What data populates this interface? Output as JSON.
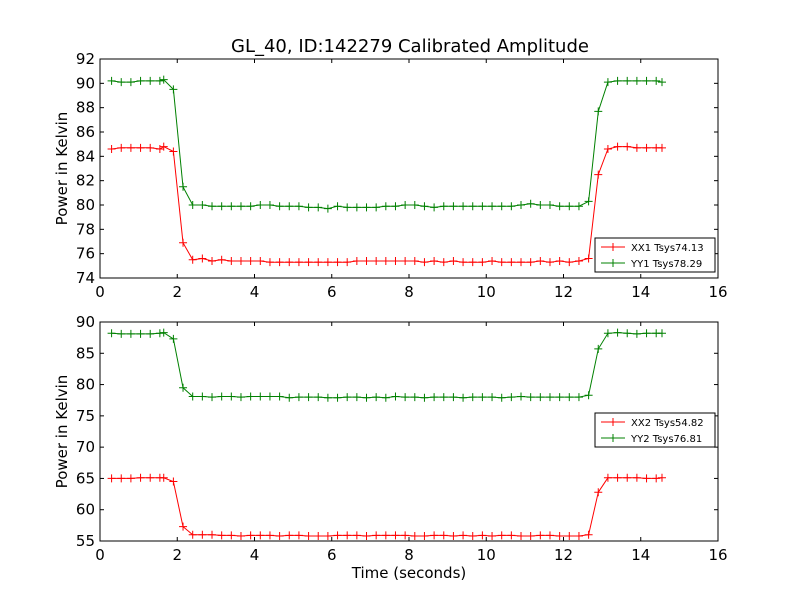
{
  "chart_data": {
    "title": "GL_40, ID:142279 Calibrated Amplitude",
    "panels": [
      {
        "type": "line",
        "xlabel": "",
        "ylabel": "Power in Kelvin",
        "xlim": [
          0,
          16
        ],
        "ylim": [
          74,
          92
        ],
        "xticks": [
          0,
          2,
          4,
          6,
          8,
          10,
          12,
          14,
          16
        ],
        "yticks": [
          74,
          76,
          78,
          80,
          82,
          84,
          86,
          88,
          90,
          92
        ],
        "legend_position": "lower-right",
        "x": [
          0.3,
          0.55,
          0.8,
          1.05,
          1.3,
          1.55,
          1.65,
          1.9,
          2.15,
          2.4,
          2.65,
          2.9,
          3.15,
          3.4,
          3.65,
          3.9,
          4.15,
          4.4,
          4.65,
          4.9,
          5.15,
          5.4,
          5.65,
          5.9,
          6.15,
          6.4,
          6.65,
          6.9,
          7.15,
          7.4,
          7.65,
          7.9,
          8.15,
          8.4,
          8.65,
          8.9,
          9.15,
          9.4,
          9.65,
          9.9,
          10.15,
          10.4,
          10.65,
          10.9,
          11.15,
          11.4,
          11.65,
          11.9,
          12.15,
          12.4,
          12.65,
          12.9,
          13.15,
          13.4,
          13.65,
          13.9,
          14.15,
          14.4,
          14.55
        ],
        "series": [
          {
            "name": "XX1 Tsys74.13",
            "color": "#ff0000",
            "values": [
              84.6,
              84.7,
              84.7,
              84.7,
              84.7,
              84.6,
              84.8,
              84.4,
              76.9,
              75.5,
              75.6,
              75.4,
              75.5,
              75.4,
              75.4,
              75.4,
              75.4,
              75.3,
              75.3,
              75.3,
              75.3,
              75.3,
              75.3,
              75.3,
              75.3,
              75.3,
              75.4,
              75.4,
              75.4,
              75.4,
              75.4,
              75.4,
              75.4,
              75.3,
              75.4,
              75.3,
              75.4,
              75.3,
              75.3,
              75.3,
              75.4,
              75.3,
              75.3,
              75.3,
              75.3,
              75.4,
              75.3,
              75.4,
              75.3,
              75.4,
              75.6,
              82.5,
              84.6,
              84.8,
              84.8,
              84.7,
              84.7,
              84.7,
              84.7
            ]
          },
          {
            "name": "YY1 Tsys78.29",
            "color": "#008000",
            "values": [
              90.2,
              90.1,
              90.1,
              90.2,
              90.2,
              90.2,
              90.3,
              89.5,
              81.5,
              80.0,
              80.0,
              79.9,
              79.9,
              79.9,
              79.9,
              79.9,
              80.0,
              80.0,
              79.9,
              79.9,
              79.9,
              79.8,
              79.8,
              79.7,
              79.9,
              79.8,
              79.8,
              79.8,
              79.8,
              79.9,
              79.9,
              80.0,
              80.0,
              79.9,
              79.8,
              79.9,
              79.9,
              79.9,
              79.9,
              79.9,
              79.9,
              79.9,
              79.9,
              80.0,
              80.1,
              80.0,
              80.0,
              79.9,
              79.9,
              79.9,
              80.3,
              87.7,
              90.1,
              90.2,
              90.2,
              90.2,
              90.2,
              90.2,
              90.1
            ]
          }
        ]
      },
      {
        "type": "line",
        "xlabel": "Time (seconds)",
        "ylabel": "Power in Kelvin",
        "xlim": [
          0,
          16
        ],
        "ylim": [
          55,
          90
        ],
        "xticks": [
          0,
          2,
          4,
          6,
          8,
          10,
          12,
          14,
          16
        ],
        "yticks": [
          55,
          60,
          65,
          70,
          75,
          80,
          85,
          90
        ],
        "legend_position": "center-right",
        "x": [
          0.3,
          0.55,
          0.8,
          1.05,
          1.3,
          1.55,
          1.65,
          1.9,
          2.15,
          2.4,
          2.65,
          2.9,
          3.15,
          3.4,
          3.65,
          3.9,
          4.15,
          4.4,
          4.65,
          4.9,
          5.15,
          5.4,
          5.65,
          5.9,
          6.15,
          6.4,
          6.65,
          6.9,
          7.15,
          7.4,
          7.65,
          7.9,
          8.15,
          8.4,
          8.65,
          8.9,
          9.15,
          9.4,
          9.65,
          9.9,
          10.15,
          10.4,
          10.65,
          10.9,
          11.15,
          11.4,
          11.65,
          11.9,
          12.15,
          12.4,
          12.65,
          12.9,
          13.15,
          13.4,
          13.65,
          13.9,
          14.15,
          14.4,
          14.55
        ],
        "series": [
          {
            "name": "XX2 Tsys54.82",
            "color": "#ff0000",
            "values": [
              65.0,
              65.0,
              65.0,
              65.1,
              65.1,
              65.1,
              65.1,
              64.5,
              57.3,
              56.0,
              56.0,
              56.0,
              55.9,
              55.9,
              55.8,
              55.9,
              55.9,
              55.9,
              55.8,
              55.9,
              55.9,
              55.8,
              55.8,
              55.8,
              55.9,
              55.9,
              55.9,
              55.8,
              55.9,
              55.9,
              55.9,
              55.9,
              55.8,
              55.8,
              55.9,
              55.9,
              55.8,
              55.9,
              55.8,
              55.9,
              55.8,
              55.9,
              55.9,
              55.8,
              55.8,
              55.9,
              55.9,
              55.8,
              55.8,
              55.8,
              56.0,
              62.8,
              65.1,
              65.1,
              65.1,
              65.1,
              65.0,
              65.0,
              65.1
            ]
          },
          {
            "name": "YY2 Tsys76.81",
            "color": "#008000",
            "values": [
              88.2,
              88.1,
              88.1,
              88.1,
              88.1,
              88.2,
              88.3,
              87.3,
              79.5,
              78.1,
              78.1,
              78.0,
              78.1,
              78.1,
              78.0,
              78.1,
              78.1,
              78.1,
              78.1,
              77.9,
              78.0,
              78.0,
              78.0,
              77.9,
              77.9,
              78.0,
              78.0,
              77.9,
              78.0,
              77.9,
              78.1,
              78.0,
              78.0,
              77.9,
              78.0,
              78.0,
              78.0,
              77.9,
              78.0,
              78.0,
              78.0,
              77.9,
              78.0,
              78.1,
              78.0,
              78.0,
              78.0,
              78.0,
              78.0,
              78.0,
              78.3,
              85.7,
              88.2,
              88.3,
              88.2,
              88.1,
              88.2,
              88.2,
              88.2
            ]
          }
        ]
      }
    ]
  }
}
